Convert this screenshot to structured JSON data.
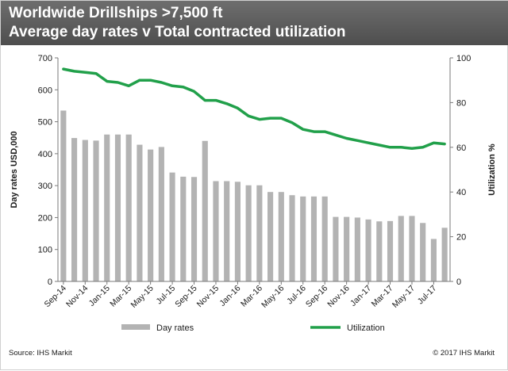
{
  "header": {
    "title_line_1": "Worldwide Drillships >7,500 ft",
    "title_line_2": "Average day rates v Total contracted utilization",
    "background": "#5a5a5a"
  },
  "footer": {
    "source": "Source: IHS Markit",
    "copyright": "© 2017 IHS Markit"
  },
  "chart_data": {
    "type": "bar+line",
    "ylabel_left": "Day rates USD,000",
    "ylabel_right": "Utilization %",
    "ylim_left": [
      0,
      700
    ],
    "ylim_right": [
      0,
      100
    ],
    "yticks_left": [
      0,
      100,
      200,
      300,
      400,
      500,
      600,
      700
    ],
    "yticks_right": [
      0,
      20,
      40,
      60,
      80,
      100
    ],
    "grid": false,
    "legend_position": "bottom",
    "x_tick_labels": [
      "Sep-14",
      "Nov-14",
      "Jan-15",
      "Mar-15",
      "May-15",
      "Jul-15",
      "Sep-15",
      "Nov-15",
      "Jan-16",
      "Mar-16",
      "May-16",
      "Jul-16",
      "Sep-16",
      "Nov-16",
      "Jan-17",
      "Mar-17",
      "May-17",
      "Jul-17"
    ],
    "categories": [
      "Sep-14",
      "Oct-14",
      "Nov-14",
      "Dec-14",
      "Jan-15",
      "Feb-15",
      "Mar-15",
      "Apr-15",
      "May-15",
      "Jun-15",
      "Jul-15",
      "Aug-15",
      "Sep-15",
      "Oct-15",
      "Nov-15",
      "Dec-15",
      "Jan-16",
      "Feb-16",
      "Mar-16",
      "Apr-16",
      "May-16",
      "Jun-16",
      "Jul-16",
      "Aug-16",
      "Sep-16",
      "Oct-16",
      "Nov-16",
      "Dec-16",
      "Jan-17",
      "Feb-17",
      "Mar-17",
      "Apr-17",
      "May-17",
      "Jun-17",
      "Jul-17",
      "Aug-17"
    ],
    "series": [
      {
        "name": "Day rates",
        "type": "bar",
        "axis": "left",
        "color": "#b3b3b3",
        "values": [
          535,
          449,
          443,
          441,
          460,
          460,
          460,
          428,
          413,
          421,
          341,
          328,
          327,
          440,
          314,
          314,
          312,
          301,
          301,
          280,
          280,
          270,
          266,
          266,
          266,
          202,
          202,
          200,
          194,
          188,
          189,
          205,
          205,
          183,
          133,
          168
        ]
      },
      {
        "name": "Utilization",
        "type": "line",
        "axis": "right",
        "color": "#21a04a",
        "values": [
          95,
          94,
          93.5,
          93,
          89.5,
          89,
          87.5,
          90,
          90,
          89,
          87.5,
          87,
          85,
          81,
          81,
          79.5,
          77.5,
          74,
          72.5,
          73,
          73,
          71,
          68,
          67,
          67,
          65.5,
          64,
          63,
          62,
          61,
          60,
          60,
          59.5,
          60,
          62,
          61.5
        ]
      }
    ]
  }
}
